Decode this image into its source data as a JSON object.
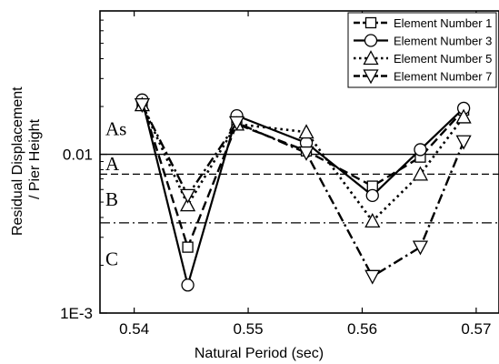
{
  "chart_data": {
    "type": "line",
    "x_label": "Natural Period (sec)",
    "y_label_lines": [
      "Residual Displacement",
      "/ Pier Height"
    ],
    "x_range": [
      0.537,
      0.572
    ],
    "y_range": [
      0.001,
      0.08
    ],
    "y_scale": "log",
    "x_ticks": [
      {
        "value": 0.54,
        "label": "0.54"
      },
      {
        "value": 0.55,
        "label": "0.55"
      },
      {
        "value": 0.56,
        "label": "0.56"
      },
      {
        "value": 0.57,
        "label": "0.57"
      }
    ],
    "y_ticks": [
      {
        "value": 0.001,
        "label": "1E-3"
      },
      {
        "value": 0.01,
        "label": "0.01"
      }
    ],
    "grid": false,
    "legend_position": "top-right",
    "reference_lines": [
      {
        "y": 0.01,
        "style": "solid"
      },
      {
        "y": 0.0075,
        "style": "dashed"
      },
      {
        "y": 0.0037,
        "style": "dash-dot"
      }
    ],
    "zone_labels": [
      {
        "label": "As",
        "y": 0.0145
      },
      {
        "label": "A",
        "y": 0.0087
      },
      {
        "label": "B",
        "y": 0.0052
      },
      {
        "label": "C",
        "y": 0.0022
      }
    ],
    "series": [
      {
        "name": "Element Number 1",
        "marker": "square",
        "line_style": "long-dash",
        "x": [
          0.5407,
          0.5447,
          0.549,
          0.5551,
          0.5609,
          0.5651,
          0.5689
        ],
        "y": [
          0.021,
          0.0026,
          0.0155,
          0.0105,
          0.0063,
          0.0096,
          0.019
        ]
      },
      {
        "name": "Element Number 3",
        "marker": "circle",
        "line_style": "solid",
        "x": [
          0.5407,
          0.5447,
          0.549,
          0.5551,
          0.5609,
          0.5651,
          0.5689
        ],
        "y": [
          0.022,
          0.0015,
          0.0175,
          0.0118,
          0.0055,
          0.0107,
          0.0195
        ]
      },
      {
        "name": "Element Number 5",
        "marker": "triangle-up",
        "line_style": "dotted",
        "x": [
          0.5407,
          0.5447,
          0.549,
          0.5551,
          0.5609,
          0.5651,
          0.5689
        ],
        "y": [
          0.0205,
          0.0048,
          0.0155,
          0.0138,
          0.0038,
          0.0075,
          0.0172
        ]
      },
      {
        "name": "Element Number 7",
        "marker": "triangle-down",
        "line_style": "dash-dot",
        "x": [
          0.5407,
          0.5447,
          0.549,
          0.5551,
          0.5609,
          0.5651,
          0.5689
        ],
        "y": [
          0.0205,
          0.0055,
          0.0158,
          0.0102,
          0.0017,
          0.0026,
          0.012
        ]
      }
    ]
  }
}
